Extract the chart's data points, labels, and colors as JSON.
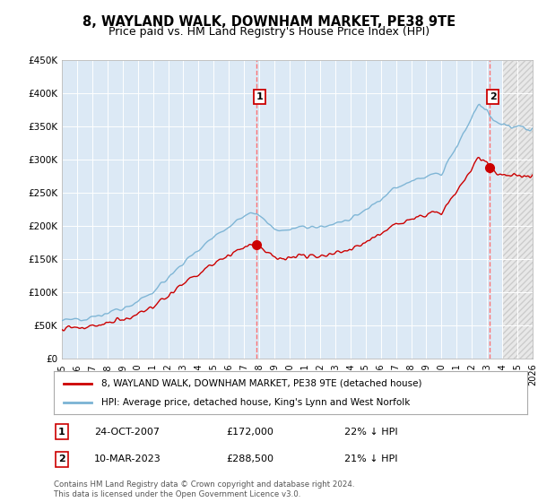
{
  "title": "8, WAYLAND WALK, DOWNHAM MARKET, PE38 9TE",
  "subtitle": "Price paid vs. HM Land Registry's House Price Index (HPI)",
  "ylim": [
    0,
    450000
  ],
  "yticks": [
    0,
    50000,
    100000,
    150000,
    200000,
    250000,
    300000,
    350000,
    400000,
    450000
  ],
  "hpi_color": "#7ab3d4",
  "price_color": "#cc0000",
  "sale1_date": 2007.82,
  "sale1_price": 172000,
  "sale2_date": 2023.19,
  "sale2_price": 288500,
  "legend_line1": "8, WAYLAND WALK, DOWNHAM MARKET, PE38 9TE (detached house)",
  "legend_line2": "HPI: Average price, detached house, King's Lynn and West Norfolk",
  "footnote": "Contains HM Land Registry data © Crown copyright and database right 2024.\nThis data is licensed under the Open Government Licence v3.0.",
  "background_color": "#ffffff",
  "plot_bg_color": "#dce9f5",
  "hatch_start": 2024.0,
  "xmin": 1995,
  "xmax": 2026
}
